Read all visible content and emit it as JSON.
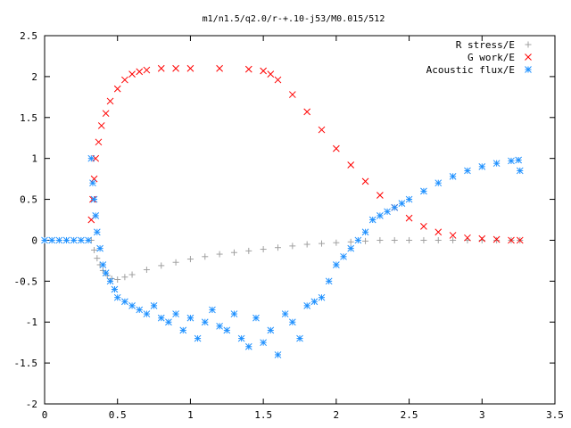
{
  "chart_data": {
    "type": "scatter",
    "title": "m1/n1.5/q2.0/r-+.10-j53/M0.015/512",
    "xlabel": "",
    "ylabel": "",
    "xlim": [
      0,
      3.5
    ],
    "ylim": [
      -2,
      2.5
    ],
    "x_ticks": [
      "0",
      "0.5",
      "1",
      "1.5",
      "2",
      "2.5",
      "3",
      "3.5"
    ],
    "y_ticks": [
      "2.5",
      "2",
      "1.5",
      "1",
      "0.5",
      "0",
      "-0.5",
      "-1",
      "-1.5",
      "-2"
    ],
    "grid": false,
    "legend_position": "top-right",
    "series": [
      {
        "name": "R stress/E",
        "marker": "plus",
        "color": "#a0a0a0",
        "x": [
          0.32,
          0.34,
          0.36,
          0.38,
          0.4,
          0.43,
          0.46,
          0.5,
          0.55,
          0.6,
          0.7,
          0.8,
          0.9,
          1.0,
          1.1,
          1.2,
          1.3,
          1.4,
          1.5,
          1.6,
          1.7,
          1.8,
          1.9,
          2.0,
          2.1,
          2.2,
          2.3,
          2.4,
          2.5,
          2.6,
          2.7,
          2.8,
          2.9,
          3.0,
          3.1,
          3.2,
          3.26
        ],
        "y": [
          0.0,
          -0.12,
          -0.22,
          -0.3,
          -0.37,
          -0.43,
          -0.47,
          -0.48,
          -0.45,
          -0.42,
          -0.36,
          -0.31,
          -0.27,
          -0.23,
          -0.2,
          -0.17,
          -0.15,
          -0.13,
          -0.11,
          -0.09,
          -0.07,
          -0.05,
          -0.04,
          -0.03,
          -0.02,
          -0.01,
          0.0,
          0.0,
          0.0,
          0.0,
          0.0,
          0.0,
          0.0,
          0.0,
          0.0,
          0.0,
          0.0
        ]
      },
      {
        "name": "G work/E",
        "marker": "cross",
        "color": "#ff0000",
        "x": [
          0.32,
          0.33,
          0.34,
          0.35,
          0.37,
          0.39,
          0.42,
          0.45,
          0.5,
          0.55,
          0.6,
          0.65,
          0.7,
          0.8,
          0.9,
          1.0,
          1.2,
          1.4,
          1.5,
          1.55,
          1.6,
          1.7,
          1.8,
          1.9,
          2.0,
          2.1,
          2.2,
          2.3,
          2.4,
          2.5,
          2.6,
          2.7,
          2.8,
          2.9,
          3.0,
          3.1,
          3.2,
          3.26
        ],
        "y": [
          0.25,
          0.5,
          0.75,
          1.0,
          1.2,
          1.4,
          1.55,
          1.7,
          1.85,
          1.96,
          2.03,
          2.06,
          2.08,
          2.1,
          2.1,
          2.1,
          2.1,
          2.09,
          2.07,
          2.03,
          1.96,
          1.78,
          1.57,
          1.35,
          1.12,
          0.92,
          0.72,
          0.55,
          0.4,
          0.27,
          0.17,
          0.1,
          0.06,
          0.03,
          0.02,
          0.01,
          0.0,
          0.0
        ]
      },
      {
        "name": "Acoustic flux/E",
        "marker": "star",
        "color": "#1e90ff",
        "x": [
          0.0,
          0.05,
          0.1,
          0.15,
          0.2,
          0.25,
          0.3,
          0.32,
          0.33,
          0.34,
          0.35,
          0.36,
          0.38,
          0.4,
          0.42,
          0.45,
          0.48,
          0.5,
          0.55,
          0.6,
          0.65,
          0.7,
          0.75,
          0.8,
          0.85,
          0.9,
          0.95,
          1.0,
          1.05,
          1.1,
          1.15,
          1.2,
          1.25,
          1.3,
          1.35,
          1.4,
          1.45,
          1.5,
          1.55,
          1.6,
          1.65,
          1.7,
          1.75,
          1.8,
          1.85,
          1.9,
          1.95,
          2.0,
          2.05,
          2.1,
          2.15,
          2.2,
          2.25,
          2.3,
          2.35,
          2.4,
          2.45,
          2.5,
          2.6,
          2.7,
          2.8,
          2.9,
          3.0,
          3.1,
          3.2,
          3.25,
          3.26
        ],
        "y": [
          0.0,
          0.0,
          0.0,
          0.0,
          0.0,
          0.0,
          0.0,
          1.0,
          0.7,
          0.5,
          0.3,
          0.1,
          -0.1,
          -0.3,
          -0.4,
          -0.5,
          -0.6,
          -0.7,
          -0.75,
          -0.8,
          -0.85,
          -0.9,
          -0.8,
          -0.95,
          -1.0,
          -0.9,
          -1.1,
          -0.95,
          -1.2,
          -1.0,
          -0.85,
          -1.05,
          -1.1,
          -0.9,
          -1.2,
          -1.3,
          -0.95,
          -1.25,
          -1.1,
          -1.4,
          -0.9,
          -1.0,
          -1.2,
          -0.8,
          -0.75,
          -0.7,
          -0.5,
          -0.3,
          -0.2,
          -0.1,
          0.0,
          0.1,
          0.25,
          0.3,
          0.35,
          0.4,
          0.45,
          0.5,
          0.6,
          0.7,
          0.78,
          0.85,
          0.9,
          0.94,
          0.97,
          0.98,
          0.85
        ]
      }
    ]
  }
}
